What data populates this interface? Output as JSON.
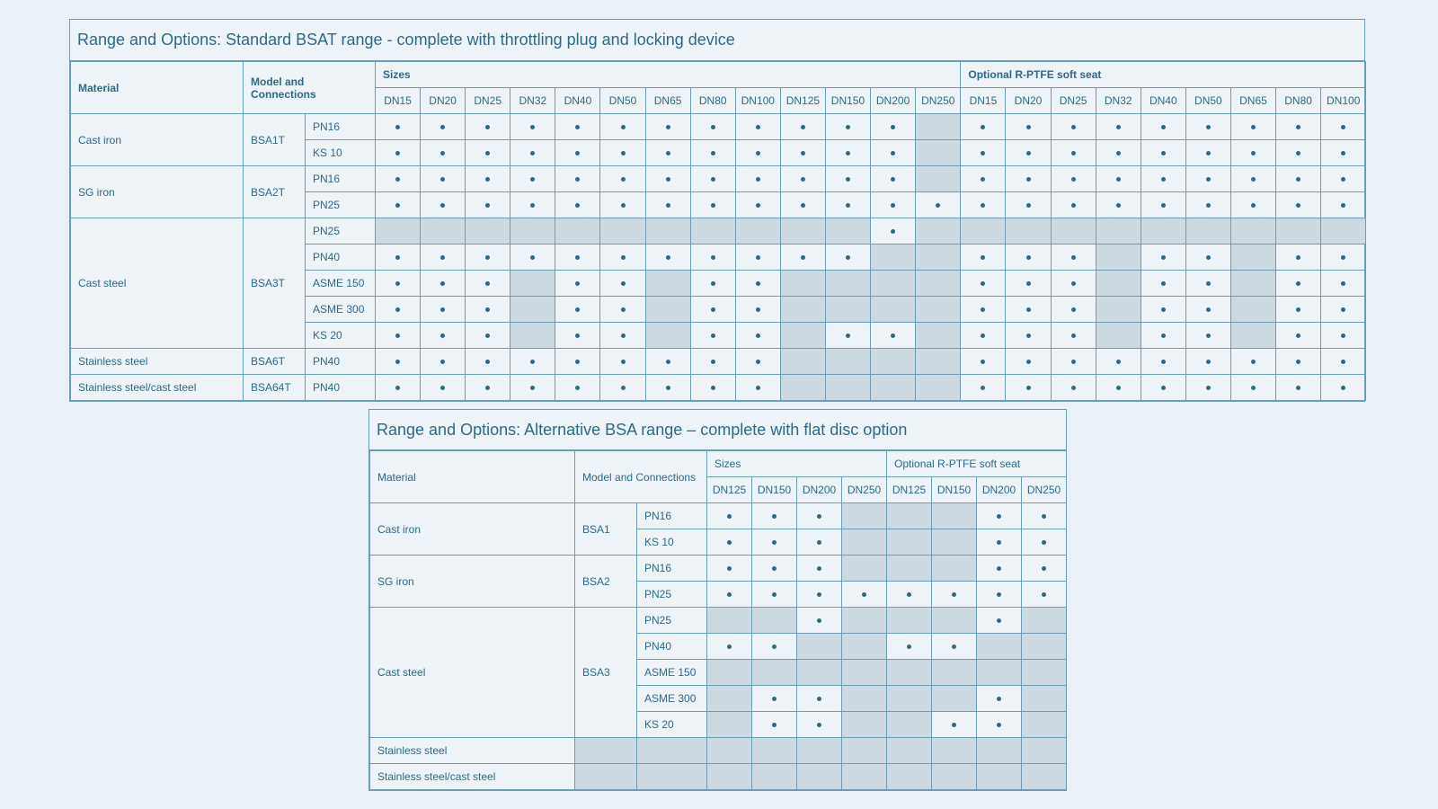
{
  "colors": {
    "border": "#6c9db3",
    "text": "#2e6a86",
    "shaded": "#ccd9e1",
    "background": "#eaf1f6"
  },
  "table1": {
    "title": "Range and Options: Standard BSAT range - complete with throttling plug and locking device",
    "headers": {
      "material": "Material",
      "model": "Model and Connections",
      "sizes": "Sizes",
      "optional": "Optional R-PTFE soft seat"
    },
    "size_cols": [
      "DN15",
      "DN20",
      "DN25",
      "DN32",
      "DN40",
      "DN50",
      "DN65",
      "DN80",
      "DN100",
      "DN125",
      "DN150",
      "DN200",
      "DN250"
    ],
    "opt_cols": [
      "DN15",
      "DN20",
      "DN25",
      "DN32",
      "DN40",
      "DN50",
      "DN65",
      "DN80",
      "DN100"
    ],
    "groups": [
      {
        "material": "Cast iron",
        "model": "BSA1T",
        "rows": [
          {
            "conn": "PN16",
            "cells": "1111111111110111111111"
          },
          {
            "conn": "KS 10",
            "cells": "1111111111110111111111"
          }
        ]
      },
      {
        "material": "SG iron",
        "model": "BSA2T",
        "rows": [
          {
            "conn": "PN16",
            "cells": "1111111111110111111111"
          },
          {
            "conn": "PN25",
            "cells": "1111111111111111111111"
          }
        ]
      },
      {
        "material": "Cast steel",
        "model": "BSA3T",
        "rows": [
          {
            "conn": "PN25",
            "cells": "0000000000010000000000"
          },
          {
            "conn": "PN40",
            "cells": "1111111111100111011011"
          },
          {
            "conn": "ASME 150",
            "cells": "1110110110000111011011"
          },
          {
            "conn": "ASME 300",
            "cells": "1110110110000111011011"
          },
          {
            "conn": "KS 20",
            "cells": "1110110110110111011011"
          }
        ]
      },
      {
        "material": "Stainless steel",
        "model": "BSA6T",
        "rows": [
          {
            "conn": "PN40",
            "cells": "1111111110000111111111"
          }
        ]
      },
      {
        "material": "Stainless steel/cast steel",
        "model": "BSA64T",
        "rows": [
          {
            "conn": "PN40",
            "cells": "1111111110000111111111"
          }
        ]
      }
    ]
  },
  "table2": {
    "title": "Range and Options: Alternative BSA range – complete with flat disc option",
    "headers": {
      "material": "Material",
      "model": "Model and Connections",
      "sizes": "Sizes",
      "optional": "Optional R-PTFE soft seat"
    },
    "size_cols": [
      "DN125",
      "DN150",
      "DN200",
      "DN250"
    ],
    "opt_cols": [
      "DN125",
      "DN150",
      "DN200",
      "DN250"
    ],
    "groups": [
      {
        "material": "Cast iron",
        "model": "BSA1",
        "rows": [
          {
            "conn": "PN16",
            "cells": "11100011"
          },
          {
            "conn": "KS 10",
            "cells": "11100011"
          }
        ]
      },
      {
        "material": "SG iron",
        "model": "BSA2",
        "rows": [
          {
            "conn": "PN16",
            "cells": "11100011"
          },
          {
            "conn": "PN25",
            "cells": "11111111"
          }
        ]
      },
      {
        "material": "Cast steel",
        "model": "BSA3",
        "rows": [
          {
            "conn": "PN25",
            "cells": "00100010"
          },
          {
            "conn": "PN40",
            "cells": "11001100"
          },
          {
            "conn": "ASME 150",
            "cells": "00000000"
          },
          {
            "conn": "ASME 300",
            "cells": "01100010"
          },
          {
            "conn": "KS 20",
            "cells": "01100110"
          }
        ]
      },
      {
        "material": "Stainless steel",
        "model": "",
        "rows": [
          {
            "conn": "",
            "cells": "00000000"
          }
        ]
      },
      {
        "material": "Stainless steel/cast steel",
        "model": "",
        "rows": [
          {
            "conn": "",
            "cells": "00000000"
          }
        ]
      }
    ]
  }
}
